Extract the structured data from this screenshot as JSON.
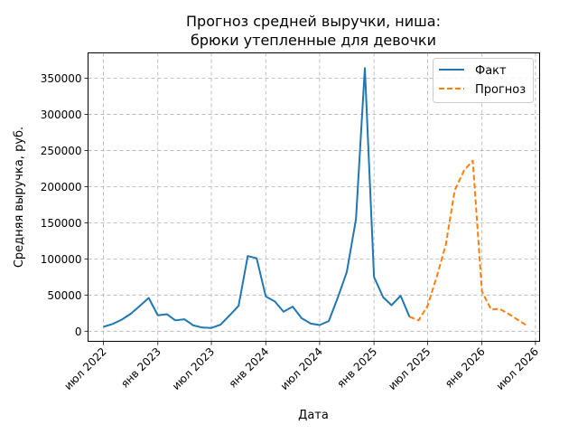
{
  "chart_data": {
    "type": "line",
    "title_lines": [
      "Прогноз средней выручки, ниша:",
      "брюки утепленные для девочки"
    ],
    "xlabel": "Дата",
    "ylabel": "Средняя выручка, руб.",
    "grid": true,
    "legend_position": "top-right",
    "xlim": [
      "2022-05-10",
      "2026-07-15"
    ],
    "ylim": [
      -14000,
      385000
    ],
    "x_ticks": [
      {
        "date": "2022-07-01",
        "label": "июл 2022"
      },
      {
        "date": "2023-01-01",
        "label": "янв 2023"
      },
      {
        "date": "2023-07-01",
        "label": "июл 2023"
      },
      {
        "date": "2024-01-01",
        "label": "янв 2024"
      },
      {
        "date": "2024-07-01",
        "label": "июл 2024"
      },
      {
        "date": "2025-01-01",
        "label": "янв 2025"
      },
      {
        "date": "2025-07-01",
        "label": "июл 2025"
      },
      {
        "date": "2026-01-01",
        "label": "янв 2026"
      },
      {
        "date": "2026-07-01",
        "label": "июл 2026"
      }
    ],
    "y_ticks": [
      {
        "value": 0,
        "label": "0"
      },
      {
        "value": 50000,
        "label": "50000"
      },
      {
        "value": 100000,
        "label": "100000"
      },
      {
        "value": 150000,
        "label": "150000"
      },
      {
        "value": 200000,
        "label": "200000"
      },
      {
        "value": 250000,
        "label": "250000"
      },
      {
        "value": 300000,
        "label": "300000"
      },
      {
        "value": 350000,
        "label": "350000"
      }
    ],
    "series": [
      {
        "name": "Факт",
        "color": "#1f77b4",
        "dash": "solid",
        "x": [
          "2022-07-01",
          "2022-08-01",
          "2022-09-01",
          "2022-10-01",
          "2022-11-01",
          "2022-12-01",
          "2023-01-01",
          "2023-02-01",
          "2023-03-01",
          "2023-04-01",
          "2023-05-01",
          "2023-06-01",
          "2023-07-01",
          "2023-08-01",
          "2023-09-01",
          "2023-10-01",
          "2023-11-01",
          "2023-12-01",
          "2024-01-01",
          "2024-02-01",
          "2024-03-01",
          "2024-04-01",
          "2024-05-01",
          "2024-06-01",
          "2024-07-01",
          "2024-08-01",
          "2024-09-01",
          "2024-10-01",
          "2024-11-01",
          "2024-12-01",
          "2025-01-01",
          "2025-02-01",
          "2025-03-01",
          "2025-04-01",
          "2025-05-01"
        ],
        "y": [
          6000,
          10000,
          16000,
          24000,
          35000,
          46000,
          22000,
          23500,
          15000,
          16500,
          8000,
          5000,
          4500,
          9000,
          22000,
          35000,
          104000,
          101000,
          48000,
          41000,
          27000,
          34000,
          18000,
          10500,
          8500,
          14000,
          47000,
          82000,
          155000,
          364000,
          75000,
          47000,
          36000,
          49000,
          20000
        ]
      },
      {
        "name": "Прогноз",
        "color": "#ff7f0e",
        "dash": "dashed",
        "x": [
          "2025-05-01",
          "2025-06-01",
          "2025-07-01",
          "2025-08-01",
          "2025-09-01",
          "2025-10-01",
          "2025-11-01",
          "2025-12-01",
          "2026-01-01",
          "2026-02-01",
          "2026-03-01",
          "2026-04-01",
          "2026-05-01",
          "2026-06-01"
        ],
        "y": [
          20000,
          15000,
          35000,
          75000,
          120000,
          195000,
          222000,
          236000,
          55000,
          30000,
          31000,
          24000,
          16000,
          8000
        ]
      }
    ]
  }
}
